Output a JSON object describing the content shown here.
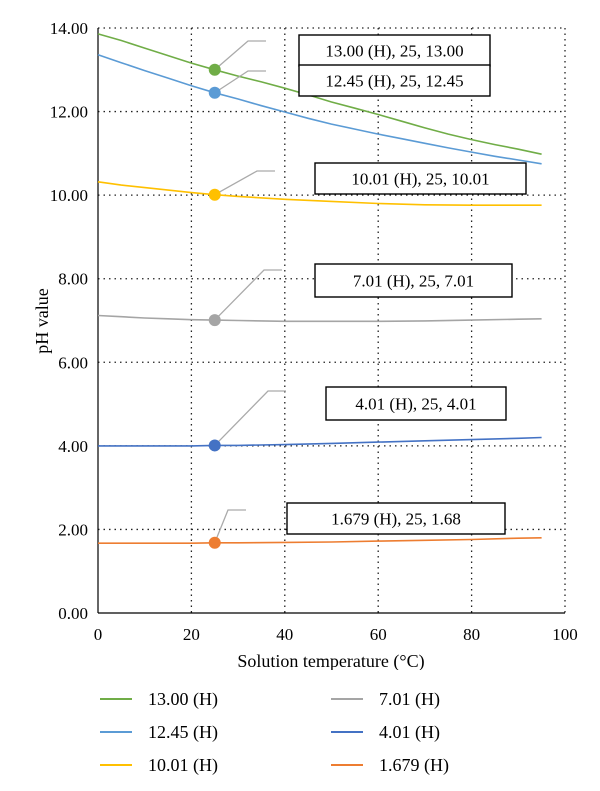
{
  "chart_data": {
    "type": "line",
    "xlabel": "Solution temperature (°C)",
    "ylabel": "pH value",
    "xlim": [
      0,
      100
    ],
    "ylim": [
      0,
      14
    ],
    "x_ticks": [
      "0",
      "20",
      "40",
      "60",
      "80",
      "100"
    ],
    "y_ticks": [
      "0.00",
      "2.00",
      "4.00",
      "6.00",
      "8.00",
      "10.00",
      "12.00",
      "14.00"
    ],
    "grid": "dotted, major gridlines",
    "legend_position": "bottom",
    "series": [
      {
        "name": "13.00 (H)",
        "color": "#70ad47",
        "x": [
          0,
          5,
          10,
          15,
          20,
          25,
          30,
          35,
          40,
          45,
          50,
          55,
          60,
          65,
          70,
          75,
          80,
          85,
          90,
          95
        ],
        "y": [
          13.86,
          13.7,
          13.52,
          13.34,
          13.16,
          13.0,
          12.85,
          12.71,
          12.56,
          12.4,
          12.23,
          12.08,
          11.93,
          11.77,
          11.61,
          11.46,
          11.33,
          11.21,
          11.1,
          10.98
        ],
        "marker": {
          "x": 25,
          "y": 13.0,
          "label": "13.00 (H), 25, 13.00"
        }
      },
      {
        "name": "12.45 (H)",
        "color": "#5b9bd5",
        "x": [
          0,
          5,
          10,
          15,
          20,
          25,
          30,
          35,
          40,
          45,
          50,
          55,
          60,
          65,
          70,
          75,
          80,
          85,
          90,
          95
        ],
        "y": [
          13.36,
          13.17,
          12.98,
          12.8,
          12.62,
          12.45,
          12.3,
          12.14,
          11.99,
          11.84,
          11.7,
          11.58,
          11.46,
          11.35,
          11.24,
          11.13,
          11.03,
          10.93,
          10.84,
          10.75
        ],
        "marker": {
          "x": 25,
          "y": 12.45,
          "label": "12.45 (H), 25, 12.45"
        }
      },
      {
        "name": "10.01 (H)",
        "color": "#ffc000",
        "x": [
          0,
          5,
          10,
          15,
          20,
          25,
          30,
          40,
          50,
          60,
          70,
          80,
          90,
          95
        ],
        "y": [
          10.32,
          10.24,
          10.18,
          10.12,
          10.06,
          10.01,
          9.97,
          9.9,
          9.85,
          9.8,
          9.77,
          9.76,
          9.76,
          9.76
        ],
        "marker": {
          "x": 25,
          "y": 10.01,
          "label": "10.01 (H), 25, 10.01"
        }
      },
      {
        "name": "7.01 (H)",
        "color": "#a5a5a5",
        "x": [
          0,
          5,
          10,
          15,
          20,
          25,
          30,
          40,
          50,
          60,
          70,
          80,
          90,
          95
        ],
        "y": [
          7.12,
          7.09,
          7.06,
          7.04,
          7.02,
          7.01,
          7.0,
          6.98,
          6.98,
          6.98,
          6.99,
          7.01,
          7.03,
          7.04
        ],
        "marker": {
          "x": 25,
          "y": 7.01,
          "label": "7.01 (H), 25, 7.01"
        }
      },
      {
        "name": "4.01 (H)",
        "color": "#4472c4",
        "x": [
          0,
          5,
          10,
          15,
          20,
          25,
          30,
          40,
          50,
          60,
          70,
          80,
          90,
          95
        ],
        "y": [
          4.0,
          4.0,
          4.0,
          4.0,
          4.0,
          4.01,
          4.01,
          4.03,
          4.06,
          4.09,
          4.12,
          4.15,
          4.18,
          4.2
        ],
        "marker": {
          "x": 25,
          "y": 4.01,
          "label": "4.01 (H), 25, 4.01"
        }
      },
      {
        "name": "1.679 (H)",
        "color": "#ed7d31",
        "x": [
          0,
          10,
          20,
          25,
          30,
          40,
          50,
          60,
          70,
          80,
          90,
          95
        ],
        "y": [
          1.67,
          1.67,
          1.67,
          1.68,
          1.68,
          1.69,
          1.7,
          1.72,
          1.74,
          1.76,
          1.79,
          1.8
        ],
        "marker": {
          "x": 25,
          "y": 1.68,
          "label": "1.679 (H), 25, 1.68"
        }
      }
    ]
  }
}
